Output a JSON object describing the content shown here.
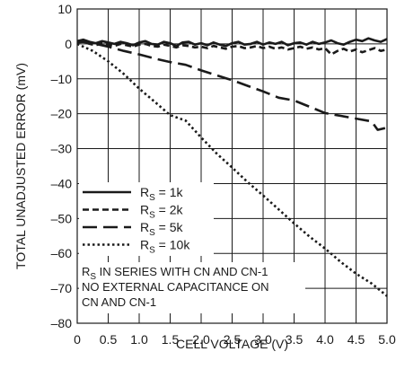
{
  "chart_data": {
    "type": "line",
    "xlabel": "CELL VOLTAGE (V)",
    "ylabel": "TOTAL UNADJUSTED ERROR (mV)",
    "xlim": [
      0,
      5.0
    ],
    "ylim": [
      -80,
      10
    ],
    "x_ticks": [
      "0",
      "0.5",
      "1.0",
      "1.5",
      "2.0",
      "2.5",
      "3.0",
      "3.5",
      "4.0",
      "4.5",
      "5.0"
    ],
    "y_ticks": [
      "10",
      "0",
      "–10",
      "–20",
      "–30",
      "–40",
      "–50",
      "–60",
      "–70",
      "–80"
    ],
    "grid": true,
    "legend_position": "left-middle",
    "annotation_lines": [
      {
        "main": "R",
        "sub": "S",
        "rest": " IN SERIES WITH CN AND CN-1"
      },
      {
        "main": "NO EXTERNAL CAPACITANCE ON",
        "sub": "",
        "rest": ""
      },
      {
        "main": "CN AND CN-1",
        "sub": "",
        "rest": ""
      }
    ],
    "series": [
      {
        "name": {
          "main": "R",
          "sub": "S",
          "rest": " = 1k"
        },
        "dash": "solid",
        "x": [
          0,
          0.1,
          0.2,
          0.3,
          0.4,
          0.5,
          0.6,
          0.7,
          0.8,
          0.9,
          1.0,
          1.1,
          1.2,
          1.3,
          1.4,
          1.5,
          1.6,
          1.7,
          1.8,
          1.9,
          2.0,
          2.1,
          2.2,
          2.3,
          2.4,
          2.5,
          2.6,
          2.7,
          2.8,
          2.9,
          3.0,
          3.1,
          3.2,
          3.3,
          3.4,
          3.5,
          3.6,
          3.7,
          3.8,
          3.9,
          4.0,
          4.1,
          4.2,
          4.3,
          4.4,
          4.5,
          4.6,
          4.7,
          4.8,
          4.9,
          5.0
        ],
        "values": [
          0.8,
          1.2,
          0.6,
          0.2,
          0.8,
          0.4,
          0.0,
          0.6,
          0.2,
          -0.4,
          0.4,
          0.8,
          0.0,
          -0.2,
          0.6,
          0.2,
          -0.6,
          0.4,
          0.6,
          -0.2,
          0.2,
          -0.4,
          0.4,
          -0.2,
          -0.6,
          0.2,
          0.6,
          -0.2,
          0.0,
          0.6,
          -0.2,
          0.4,
          0.0,
          0.6,
          -0.4,
          0.2,
          0.4,
          -0.2,
          0.6,
          0.0,
          0.4,
          1.0,
          0.2,
          -0.2,
          0.6,
          1.2,
          0.8,
          1.6,
          1.0,
          0.6,
          1.4
        ]
      },
      {
        "name": {
          "main": "R",
          "sub": "S",
          "rest": " = 2k"
        },
        "dash": "medium",
        "x": [
          0,
          0.1,
          0.2,
          0.3,
          0.4,
          0.5,
          0.6,
          0.7,
          0.8,
          0.9,
          1.0,
          1.1,
          1.2,
          1.3,
          1.4,
          1.5,
          1.6,
          1.7,
          1.8,
          1.9,
          2.0,
          2.1,
          2.2,
          2.3,
          2.4,
          2.5,
          2.6,
          2.7,
          2.8,
          2.9,
          3.0,
          3.1,
          3.2,
          3.3,
          3.4,
          3.5,
          3.6,
          3.7,
          3.8,
          3.9,
          4.0,
          4.1,
          4.2,
          4.3,
          4.4,
          4.5,
          4.6,
          4.7,
          4.8,
          4.9,
          5.0
        ],
        "values": [
          0.4,
          0.6,
          0.0,
          -0.4,
          0.2,
          -0.2,
          -0.6,
          0.0,
          -0.4,
          -0.8,
          -0.2,
          0.0,
          -0.6,
          -0.8,
          -0.2,
          -0.6,
          -1.0,
          -0.4,
          -0.6,
          -1.0,
          -0.8,
          -1.2,
          -0.6,
          -1.0,
          -1.4,
          -0.8,
          -0.6,
          -1.2,
          -1.0,
          -0.6,
          -1.2,
          -0.8,
          -1.4,
          -1.0,
          -1.6,
          -1.2,
          -0.8,
          -1.4,
          -1.0,
          -1.6,
          -1.2,
          -3.0,
          -2.0,
          -1.4,
          -2.2,
          -1.6,
          -2.4,
          -1.8,
          -1.2,
          -2.0,
          -1.6
        ]
      },
      {
        "name": {
          "main": "R",
          "sub": "S",
          "rest": " = 5k"
        },
        "dash": "long",
        "x": [
          0,
          0.25,
          0.5,
          0.75,
          1.0,
          1.25,
          1.5,
          1.75,
          2.0,
          2.25,
          2.5,
          2.75,
          3.0,
          3.25,
          3.5,
          3.75,
          4.0,
          4.25,
          4.5,
          4.75,
          4.85,
          5.0
        ],
        "values": [
          0.8,
          0.2,
          -0.8,
          -2.0,
          -3.0,
          -4.2,
          -5.2,
          -6.0,
          -7.6,
          -9.0,
          -10.4,
          -12.0,
          -13.6,
          -15.4,
          -16.2,
          -18.0,
          -19.8,
          -20.6,
          -21.4,
          -22.2,
          -24.6,
          -24.0
        ]
      },
      {
        "name": {
          "main": "R",
          "sub": "S",
          "rest": " = 10k"
        },
        "dash": "dotted",
        "x": [
          0,
          0.25,
          0.5,
          0.75,
          1.0,
          1.25,
          1.5,
          1.75,
          2.0,
          2.25,
          2.5,
          2.75,
          3.0,
          3.25,
          3.5,
          3.75,
          4.0,
          4.25,
          4.5,
          4.75,
          5.0
        ],
        "values": [
          0.0,
          -2.0,
          -5.0,
          -8.6,
          -12.8,
          -16.6,
          -20.4,
          -22.0,
          -26.8,
          -31.4,
          -35.4,
          -39.6,
          -43.4,
          -47.4,
          -51.4,
          -55.2,
          -58.6,
          -62.4,
          -65.8,
          -68.6,
          -72.2
        ]
      }
    ]
  }
}
